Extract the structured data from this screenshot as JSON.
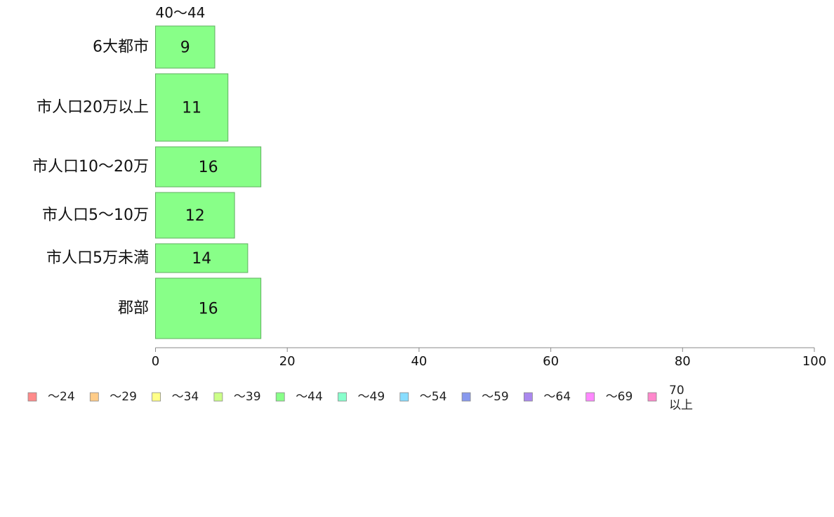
{
  "chart_data": {
    "type": "bar",
    "orientation": "horizontal",
    "stacked": true,
    "series_header": "40〜44",
    "categories": [
      "6大都市",
      "市人口20万以上",
      "市人口10〜20万",
      "市人口5〜10万",
      "市人口5万未満",
      "郡部"
    ],
    "series": [
      {
        "name": "〜44",
        "color": "#88ff88",
        "values": [
          9,
          11,
          16,
          12,
          14,
          16
        ],
        "labels": [
          "9",
          "11",
          "16",
          "12",
          "14",
          "16"
        ]
      }
    ],
    "xlim": [
      0,
      100
    ],
    "x_ticks": [
      "0",
      "20",
      "40",
      "60",
      "80",
      "100"
    ],
    "legend": {
      "placement": "bottom",
      "items": [
        {
          "label": "〜24",
          "color": "#ff8a8a"
        },
        {
          "label": "〜29",
          "color": "#ffcc88"
        },
        {
          "label": "〜34",
          "color": "#ffff88"
        },
        {
          "label": "〜39",
          "color": "#ccff88"
        },
        {
          "label": "〜44",
          "color": "#88ff88"
        },
        {
          "label": "〜49",
          "color": "#88ffcc"
        },
        {
          "label": "〜54",
          "color": "#88ddff"
        },
        {
          "label": "〜59",
          "color": "#8899ee"
        },
        {
          "label": "〜64",
          "color": "#aa88ee"
        },
        {
          "label": "〜69",
          "color": "#ff88ff"
        },
        {
          "label": "70",
          "label2": "以上",
          "color": "#ff88cc"
        }
      ]
    }
  }
}
